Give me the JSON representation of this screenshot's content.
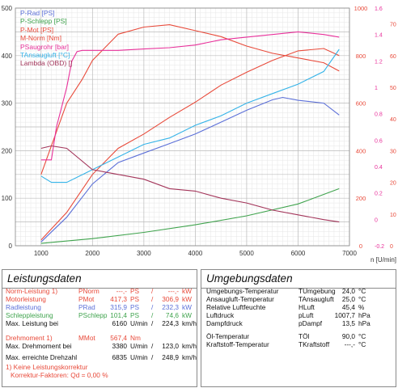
{
  "chart_data": {
    "type": "line",
    "xlabel": "n [U/min]",
    "xlim": [
      500,
      7000
    ],
    "x_ticks": [
      "1000",
      "2000",
      "3000",
      "4000",
      "5000",
      "6000",
      "7000"
    ],
    "y_left": {
      "ylim": [
        0,
        500
      ],
      "ticks": [
        "0",
        "100",
        "200",
        "300",
        "400",
        "500"
      ]
    },
    "y_right_torque": {
      "ylim": [
        0,
        1000
      ],
      "ticks": [
        "0",
        "200",
        "400",
        "600",
        "800",
        "1000"
      ]
    },
    "y_right_boost": {
      "ylim": [
        -0.2,
        1.6
      ],
      "ticks": [
        "-0.2",
        "0",
        "0.2",
        "0.4",
        "0.6",
        "0.8",
        "1",
        "1.2",
        "1.4",
        "1.6"
      ]
    },
    "y_right_temp": {
      "ylim": [
        0,
        75
      ],
      "ticks": [
        "0",
        "10",
        "20",
        "30",
        "40",
        "50",
        "60",
        "70"
      ]
    },
    "grid": true,
    "legend_position": "top-left",
    "legend": [
      {
        "label": "P-Rad [PS]",
        "color": "#5b6fd8"
      },
      {
        "label": "P-Schlepp [PS]",
        "color": "#3fa34d"
      },
      {
        "label": "P-Mot [PS]",
        "color": "#e84a3a"
      },
      {
        "label": "M-Norm [Nm]",
        "color": "#e84a3a"
      },
      {
        "label": "P_Saugrohr [bar]",
        "color": "#e8309a"
      },
      {
        "label": "T_Ansaugluft [°C]",
        "color": "#34b3e8"
      },
      {
        "label": "Lambda (OBD) []",
        "color": "#a3355a"
      }
    ],
    "series": [
      {
        "name": "P-Rad [PS]",
        "axis": "left",
        "color": "#5b6fd8",
        "x": [
          1000,
          1500,
          2000,
          2500,
          3000,
          3500,
          4000,
          4500,
          5000,
          5500,
          5700,
          6000,
          6500,
          6800
        ],
        "y": [
          8,
          60,
          130,
          175,
          195,
          215,
          235,
          260,
          285,
          307,
          312,
          306,
          300,
          275
        ]
      },
      {
        "name": "P-Schlepp [PS]",
        "axis": "left",
        "color": "#3fa34d",
        "x": [
          1000,
          2000,
          3000,
          4000,
          5000,
          6000,
          6800
        ],
        "y": [
          5,
          15,
          28,
          44,
          63,
          88,
          120
        ]
      },
      {
        "name": "P-Mot [PS]",
        "axis": "left",
        "color": "#e84a3a",
        "x": [
          1000,
          1500,
          2000,
          2500,
          3000,
          3500,
          4000,
          4500,
          5000,
          5500,
          6000,
          6500,
          6800
        ],
        "y": [
          12,
          70,
          150,
          205,
          235,
          270,
          302,
          338,
          365,
          390,
          410,
          415,
          400
        ]
      },
      {
        "name": "M-Norm [Nm]",
        "axis": "right_torque",
        "color": "#e84a3a",
        "x": [
          1000,
          1500,
          1800,
          2000,
          2500,
          3000,
          3500,
          4000,
          4500,
          5000,
          5500,
          6000,
          6500,
          6800
        ],
        "y": [
          300,
          600,
          700,
          780,
          890,
          920,
          930,
          905,
          880,
          840,
          810,
          790,
          770,
          735
        ]
      },
      {
        "name": "P_Saugrohr [bar]",
        "axis": "right_boost",
        "color": "#e8309a",
        "x": [
          1000,
          1200,
          1300,
          1400,
          1500,
          1600,
          1700,
          1800,
          2000,
          2500,
          3000,
          3500,
          4000,
          4500,
          5000,
          5500,
          6000,
          6500,
          6800
        ],
        "y": [
          0.45,
          0.45,
          0.7,
          0.85,
          1.0,
          1.2,
          1.27,
          1.28,
          1.28,
          1.28,
          1.29,
          1.3,
          1.32,
          1.36,
          1.38,
          1.4,
          1.42,
          1.4,
          1.38
        ]
      },
      {
        "name": "T_Ansaugluft [°C]",
        "axis": "right_temp",
        "color": "#34b3e8",
        "x": [
          1000,
          1200,
          1500,
          2000,
          2500,
          3000,
          3500,
          4000,
          4500,
          5000,
          5500,
          6000,
          6500,
          6800
        ],
        "y": [
          22,
          20,
          20,
          24,
          28,
          32,
          34,
          38,
          41,
          45,
          48,
          51,
          55,
          62
        ]
      },
      {
        "name": "Lambda (OBD) []",
        "axis": "left",
        "color": "#a3355a",
        "x": [
          1000,
          1200,
          1500,
          2000,
          2500,
          3000,
          3500,
          4000,
          4500,
          5000,
          5500,
          6000,
          6500,
          6800
        ],
        "y": [
          205,
          210,
          205,
          160,
          150,
          140,
          120,
          115,
          100,
          90,
          75,
          65,
          55,
          50
        ]
      }
    ]
  },
  "legend_lines": [
    "P-Rad [PS]",
    "P-Schlepp [PS]",
    "P-Mot [PS]",
    "M-Norm [Nm]",
    "PSaugrohr [bar]",
    "TAnsaugluft [°C]",
    "Lambda (OBD) []"
  ],
  "left_panel": {
    "title": "Leistungsdaten",
    "rows": [
      {
        "label": "Norm-Leistung",
        "sup": "1)",
        "sym": "PNorm",
        "v1": "---,-",
        "u1": "PS",
        "sep": "/",
        "v2": "---,-",
        "u2": "kW",
        "color": "#e84a3a"
      },
      {
        "label": "Motorleistung",
        "sup": "",
        "sym": "PMot",
        "v1": "417,3",
        "u1": "PS",
        "sep": "/",
        "v2": "306,9",
        "u2": "kW",
        "color": "#e84a3a"
      },
      {
        "label": "Radleistung",
        "sup": "",
        "sym": "PRad",
        "v1": "315,9",
        "u1": "PS",
        "sep": "/",
        "v2": "232,3",
        "u2": "kW",
        "color": "#5b6fd8"
      },
      {
        "label": "Schleppleistung",
        "sup": "",
        "sym": "PSchlepp",
        "v1": "101,4",
        "u1": "PS",
        "sep": "/",
        "v2": "74,6",
        "u2": "kW",
        "color": "#3fa34d"
      },
      {
        "label": "Max. Leistung bei",
        "sup": "",
        "sym": "",
        "v1": "6160",
        "u1": "U/min",
        "sep": "/",
        "v2": "224,3",
        "u2": "km/h",
        "color": "#111"
      },
      {
        "label": "Drehmoment",
        "sup": "1)",
        "sym": "MMot",
        "v1": "567,4",
        "u1": "Nm",
        "sep": "",
        "v2": "",
        "u2": "",
        "color": "#e84a3a"
      },
      {
        "label": "Max. Drehmoment bei",
        "sup": "",
        "sym": "",
        "v1": "3380",
        "u1": "U/min",
        "sep": "/",
        "v2": "123,0",
        "u2": "km/h",
        "color": "#111"
      },
      {
        "label": "Max. erreichte Drehzahl",
        "sup": "",
        "sym": "",
        "v1": "6835",
        "u1": "U/min",
        "sep": "/",
        "v2": "248,9",
        "u2": "km/h",
        "color": "#111"
      }
    ],
    "footnote1": "1) Keine Leistungskorrektur",
    "footnote2": "Korrektur-Faktoren: Qd =   0,00 %"
  },
  "right_panel": {
    "title": "Umgebungsdaten",
    "rows": [
      {
        "label": "Umgebungs-Temperatur",
        "sym": "TUmgebung",
        "value": "24,0",
        "unit": "°C"
      },
      {
        "label": "Ansaugluft-Temperatur",
        "sym": "TAnsaugluft",
        "value": "25,0",
        "unit": "°C"
      },
      {
        "label": "Relative Luftfeuchte",
        "sym": "HLuft",
        "value": "45,4",
        "unit": "%"
      },
      {
        "label": "Luftdruck",
        "sym": "pLuft",
        "value": "1007,7",
        "unit": "hPa"
      },
      {
        "label": "Dampfdruck",
        "sym": "pDampf",
        "value": "13,5",
        "unit": "hPa"
      },
      {
        "label": "Öl-Temperatur",
        "sym": "TÖl",
        "value": "90,0",
        "unit": "°C"
      },
      {
        "label": "Kraftstoff-Temperatur",
        "sym": "TKraftstoff",
        "value": "---,-",
        "unit": "°C"
      }
    ]
  }
}
